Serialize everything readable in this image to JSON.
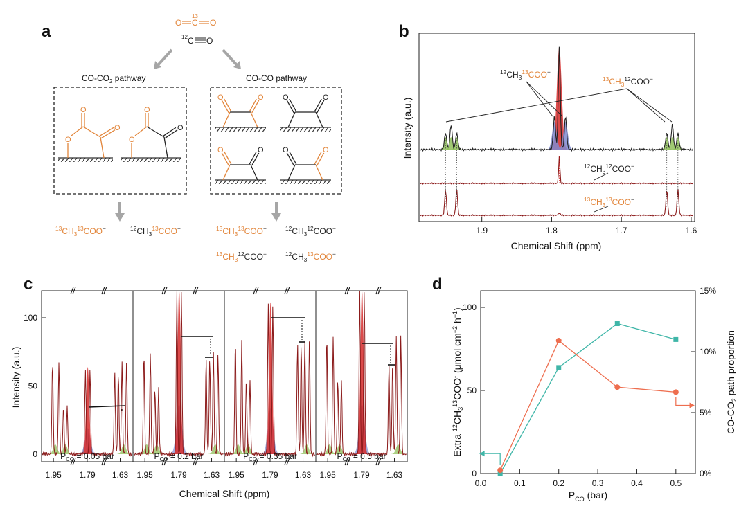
{
  "colors": {
    "orange": "#e2853a",
    "red": "#d62a2a",
    "darkred": "#8b1a1a",
    "blue": "#7f8ad0",
    "green": "#8fbf5a",
    "teal": "#3fb6a8",
    "salmon": "#ee6e4f",
    "gray": "#a6a6a6"
  },
  "panels": {
    "a": "a",
    "b": "b",
    "c": "c",
    "d": "d"
  },
  "panel_a": {
    "co2_c_superscript": "13",
    "co_c_superscript": "12",
    "atom_O": "O",
    "atom_C": "C",
    "pathway_left": "CO-CO",
    "pathway_left_sub": "2",
    "pathway_left_suffix": " pathway",
    "pathway_right": "CO-CO pathway",
    "products_left": [
      {
        "p1": "13",
        "t1": "CH",
        "s1": "3",
        "p2": "13",
        "t2": "COO",
        "sup": "−",
        "c1": "orange",
        "c2": "orange"
      },
      {
        "p1": "12",
        "t1": "CH",
        "s1": "3",
        "p2": "13",
        "t2": "COO",
        "sup": "−",
        "c1": "black",
        "c2": "orange"
      }
    ],
    "products_right": [
      {
        "p1": "13",
        "t1": "CH",
        "s1": "3",
        "p2": "13",
        "t2": "COO",
        "sup": "−",
        "c1": "orange",
        "c2": "orange"
      },
      {
        "p1": "12",
        "t1": "CH",
        "s1": "3",
        "p2": "12",
        "t2": "COO",
        "sup": "−",
        "c1": "black",
        "c2": "black"
      },
      {
        "p1": "13",
        "t1": "CH",
        "s1": "3",
        "p2": "12",
        "t2": "COO",
        "sup": "−",
        "c1": "orange",
        "c2": "black"
      },
      {
        "p1": "12",
        "t1": "CH",
        "s1": "3",
        "p2": "13",
        "t2": "COO",
        "sup": "−",
        "c1": "black",
        "c2": "orange"
      }
    ]
  },
  "panel_b": {
    "ylabel": "Intensity (a.u.)",
    "xlabel": "Chemical Shift (ppm)",
    "xticks": [
      "1.9",
      "1.8",
      "1.7",
      "1.6"
    ],
    "labels": {
      "l1": {
        "p1": "12",
        "t1": "CH",
        "s1": "3",
        "p2": "13",
        "t2": "COO",
        "sup": "−"
      },
      "l2": {
        "p1": "13",
        "t1": "CH",
        "s1": "3",
        "p2": "12",
        "t2": "COO",
        "sup": "−"
      },
      "l3": {
        "p1": "12",
        "t1": "CH",
        "s1": "3",
        "p2": "12",
        "t2": "COO",
        "sup": "−"
      },
      "l4": {
        "p1": "13",
        "t1": "CH",
        "s1": "3",
        "p2": "13",
        "t2": "COO",
        "sup": "−"
      }
    }
  },
  "panel_c": {
    "ylabel": "Intensity (a.u.)",
    "xlabel": "Chemical Shift (ppm)",
    "yticks": [
      "0",
      "50",
      "100"
    ],
    "xticks": [
      "1.95",
      "1.79",
      "1.63"
    ],
    "pressure_labels": [
      {
        "p": "P",
        "sub": "CO",
        "val": " = 0.05 bar"
      },
      {
        "p": "P",
        "sub": "CO",
        "val": " = 0.2 bar"
      },
      {
        "p": "P",
        "sub": "CO",
        "val": " = 0.35 bar"
      },
      {
        "p": "P",
        "sub": "CO",
        "val": " = 0.5 bar"
      }
    ]
  },
  "chart_data": {
    "type": "line",
    "x": [
      0.05,
      0.2,
      0.35,
      0.5
    ],
    "series": [
      {
        "name": "Extra 12CH3 13COO−",
        "values": [
          2,
          80,
          52,
          49
        ],
        "axis": "left"
      },
      {
        "name": "CO-CO2 path proportion",
        "values": [
          0,
          8.7,
          12.3,
          11.0
        ],
        "axis": "right"
      }
    ],
    "xlabel": "P_CO (bar)",
    "ylabel_left": "Extra 12CH3 13COO− (µmol cm−2 h−1)",
    "ylabel_right": "CO-CO2 path proportion",
    "xlim": [
      0.0,
      0.55
    ],
    "ylim_left": [
      0,
      110
    ],
    "ylim_right": [
      0,
      15
    ],
    "xticks": [
      "0.0",
      "0.1",
      "0.2",
      "0.3",
      "0.4",
      "0.5"
    ],
    "yticks_left": [
      "0",
      "50",
      "100"
    ],
    "yticks_right": [
      "0%",
      "5%",
      "10%",
      "15%"
    ]
  },
  "panel_d_text": {
    "ylabel_left_pre": "Extra ",
    "ylabel_left_p1": "12",
    "ylabel_left_t1": "CH",
    "ylabel_left_s1": "3",
    "ylabel_left_p2": "13",
    "ylabel_left_t2": "COO",
    "ylabel_left_sup": "-",
    "ylabel_left_unit": " (μmol cm",
    "ylabel_left_unit_sup": "−2",
    "ylabel_left_unit2": " h",
    "ylabel_left_unit2_sup": "−1",
    "ylabel_left_close": ")",
    "ylabel_right_pre": "CO-CO",
    "ylabel_right_sub": "2",
    "ylabel_right_post": " path proportion",
    "xlabel_p": "P",
    "xlabel_sub": "CO",
    "xlabel_post": " (bar)"
  }
}
